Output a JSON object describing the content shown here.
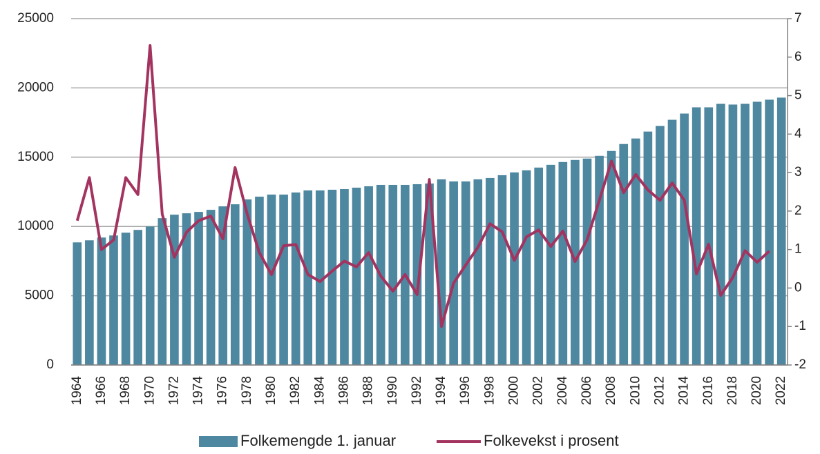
{
  "chart_data": {
    "type": "bar-line",
    "categories": [
      "1964",
      null,
      "1966",
      null,
      "1968",
      null,
      "1970",
      null,
      "1972",
      null,
      "1974",
      null,
      "1976",
      null,
      "1978",
      null,
      "1980",
      null,
      "1982",
      null,
      "1984",
      null,
      "1986",
      null,
      "1988",
      null,
      "1990",
      null,
      "1992",
      null,
      "1994",
      null,
      "1996",
      null,
      "1998",
      null,
      "2000",
      null,
      "2002",
      null,
      "2004",
      null,
      "2006",
      null,
      "2008",
      null,
      "2010",
      null,
      "2012",
      null,
      "2014",
      null,
      "2016",
      null,
      "2018",
      null,
      "2020",
      null,
      "2022"
    ],
    "series": [
      {
        "name": "Folkemengde 1. januar",
        "type": "bar",
        "color": "#4e87a0",
        "values": [
          8850,
          9000,
          9200,
          9350,
          9550,
          9750,
          10000,
          10600,
          10850,
          10950,
          11050,
          11200,
          11450,
          11600,
          11950,
          12150,
          12300,
          12300,
          12450,
          12600,
          12600,
          12650,
          12700,
          12800,
          12900,
          13000,
          13000,
          13000,
          13050,
          13100,
          13400,
          13250,
          13250,
          13400,
          13500,
          13700,
          13900,
          14050,
          14250,
          14450,
          14650,
          14800,
          14900,
          15100,
          15450,
          15950,
          16350,
          16850,
          17250,
          17700,
          18150,
          18600,
          18600,
          18850,
          18800,
          18850,
          19000,
          19150,
          19300
        ]
      },
      {
        "name": "Folkevekst i prosent",
        "type": "line",
        "axis": "y2",
        "color": "#a3335f",
        "values": [
          1.75,
          2.87,
          1.0,
          1.25,
          2.87,
          2.43,
          6.3,
          1.92,
          0.8,
          1.45,
          1.75,
          1.87,
          1.28,
          3.13,
          1.92,
          0.92,
          0.35,
          1.1,
          1.13,
          0.35,
          0.17,
          0.44,
          0.7,
          0.55,
          0.92,
          0.31,
          -0.08,
          0.35,
          -0.17,
          2.82,
          -1.0,
          0.13,
          0.6,
          1.06,
          1.67,
          1.46,
          0.72,
          1.33,
          1.51,
          1.08,
          1.48,
          0.69,
          1.26,
          2.28,
          3.3,
          2.48,
          2.95,
          2.55,
          2.28,
          2.73,
          2.28,
          0.37,
          1.14,
          -0.19,
          0.28,
          0.97,
          0.67,
          0.96,
          null
        ]
      }
    ],
    "ylim": [
      0,
      25000
    ],
    "yticks": [
      0,
      5000,
      10000,
      15000,
      20000,
      25000
    ],
    "y2lim": [
      -2,
      7
    ],
    "y2ticks": [
      -2,
      -1,
      0,
      1,
      2,
      3,
      4,
      5,
      6,
      7
    ],
    "grid": true,
    "legend": "bottom"
  }
}
